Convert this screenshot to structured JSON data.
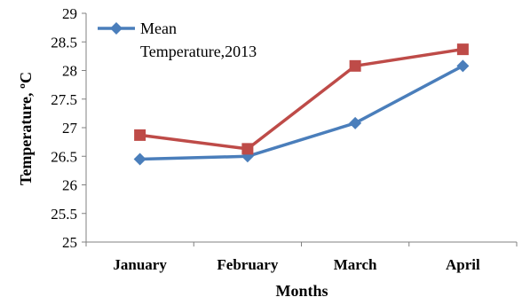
{
  "chart_data": {
    "type": "line",
    "categories": [
      "January",
      "February",
      "March",
      "April"
    ],
    "series": [
      {
        "name": "Mean Temperature,2013",
        "color": "#4a7ebb",
        "marker": "diamond",
        "values": [
          26.45,
          26.5,
          27.08,
          28.08
        ]
      },
      {
        "color": "#be4b48",
        "marker": "square",
        "values": [
          26.87,
          26.63,
          28.08,
          28.37
        ]
      }
    ],
    "xlabel": "Months",
    "ylabel": "Temperature, ºC",
    "ylim": [
      25,
      29
    ],
    "yticks": [
      "25",
      "25.5",
      "26",
      "26.5",
      "27",
      "27.5",
      "28",
      "28.5",
      "29"
    ],
    "grid": false,
    "legend": {
      "placement": "top-left",
      "lines": [
        "Mean",
        "Temperature,2013"
      ]
    }
  }
}
